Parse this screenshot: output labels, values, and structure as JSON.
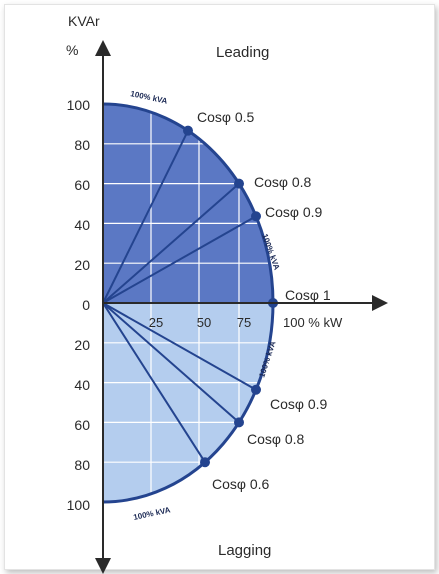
{
  "title_y_unit": "KVAr",
  "title_y_percent": "%",
  "region_top": "Leading",
  "region_bottom": "Lagging",
  "x_axis_label": "100 % kW",
  "y_ticks_upper": [
    "100",
    "80",
    "60",
    "40",
    "20"
  ],
  "y_tick_zero": "0",
  "y_ticks_lower": [
    "20",
    "40",
    "60",
    "80",
    "100"
  ],
  "x_ticks": [
    "25",
    "50",
    "75"
  ],
  "arc_labels": {
    "top": "100% kVA",
    "right_upper": "100% kVA",
    "right_lower": "100% kVA",
    "bottom": "100% kVA"
  },
  "leading_lines": [
    {
      "label": "Cosφ 0.5",
      "angle_deg": 60
    },
    {
      "label": "Cosφ 0.8",
      "angle_deg": 36.87
    },
    {
      "label": "Cosφ 0.9",
      "angle_deg": 25.84
    }
  ],
  "unity_line": {
    "label": "Cosφ 1",
    "angle_deg": 0
  },
  "lagging_lines": [
    {
      "label": "Cosφ 0.9",
      "angle_deg": -25.84
    },
    {
      "label": "Cosφ 0.8",
      "angle_deg": -36.87
    },
    {
      "label": "Cosφ 0.6",
      "angle_deg": -53.13
    }
  ],
  "colors": {
    "upper_fill": "#5b78c4",
    "lower_fill": "#b4cdee",
    "line": "#24448f",
    "axis": "#2a2a2a",
    "grid": "#ffffff"
  }
}
